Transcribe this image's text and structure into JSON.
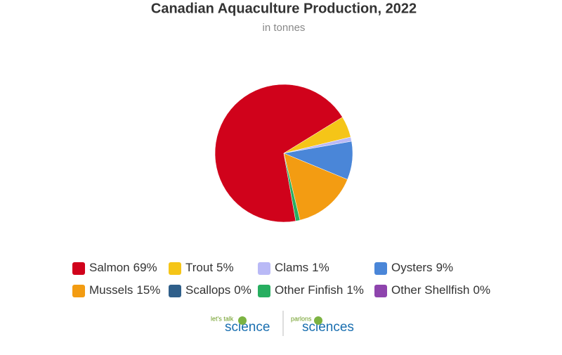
{
  "chart_data": {
    "type": "pie",
    "title": "Canadian Aquaculture Production, 2022",
    "subtitle": "in tonnes",
    "categories": [
      "Salmon",
      "Trout",
      "Clams",
      "Oysters",
      "Mussels",
      "Scallops",
      "Other Finfish",
      "Other Shellfish"
    ],
    "values": [
      69,
      5,
      1,
      9,
      15,
      0,
      1,
      0
    ],
    "value_labels": [
      "69%",
      "5%",
      "1%",
      "9%",
      "15%",
      "0%",
      "1%",
      "0%"
    ],
    "colors": [
      "#d0021b",
      "#f5c518",
      "#b9b9f6",
      "#4a86d8",
      "#f39c12",
      "#2f5f8a",
      "#27ae60",
      "#8e44ad"
    ],
    "legend": "bottom"
  },
  "logo": {
    "left_small": "let's talk",
    "left": "science",
    "right_small": "parlons",
    "right": "sciences"
  }
}
